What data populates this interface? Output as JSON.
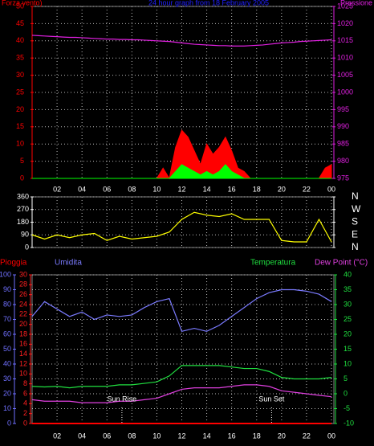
{
  "chart_data": [
    {
      "type": "line",
      "title": "24 hour graph from 18 February 2005",
      "title_color": "#2020ff",
      "ylabel": "Forza vento)",
      "y2label": "Pressione",
      "x": [
        0,
        0.5,
        1,
        1.5,
        2,
        2.5,
        3,
        3.5,
        4,
        4.5,
        5,
        5.5,
        6,
        6.5,
        7,
        7.5,
        8,
        8.5,
        9,
        9.5,
        10,
        10.5,
        11,
        11.5,
        12,
        12.5,
        13,
        13.5,
        14,
        14.5,
        15,
        15.5,
        16,
        16.5,
        17,
        17.5,
        18,
        18.5,
        19,
        19.5,
        20,
        20.5,
        21,
        21.5,
        22,
        22.5,
        23,
        23.5,
        24
      ],
      "xlim": [
        0,
        24
      ],
      "xticks": [
        {
          "value": 2,
          "label": "02"
        },
        {
          "value": 4,
          "label": "04"
        },
        {
          "value": 6,
          "label": "06"
        },
        {
          "value": 8,
          "label": "08"
        },
        10,
        12,
        14,
        16,
        18,
        20,
        22,
        {
          "value": 24,
          "label": "00"
        }
      ],
      "ylim": [
        0,
        50
      ],
      "yticks": [
        0,
        5,
        10,
        15,
        20,
        25,
        30,
        35,
        40,
        45,
        50
      ],
      "ycolor": "#ff0000",
      "y2lim": [
        975,
        1025
      ],
      "y2ticks": [
        975,
        980,
        985,
        990,
        995,
        1000,
        1005,
        1010,
        1015,
        1020,
        1025
      ],
      "y2color": "#e020e0",
      "grid": true,
      "grid_axis": "y",
      "series": [
        {
          "style": "area",
          "color": "#ff0000",
          "axis": "y",
          "values": [
            0,
            0,
            0,
            0,
            0,
            0,
            0,
            0,
            0,
            0,
            0,
            0,
            0,
            0,
            0,
            0,
            0,
            0,
            0,
            0,
            0,
            3,
            0,
            9,
            14,
            12,
            8,
            4,
            10,
            7,
            9,
            12,
            8,
            3,
            2,
            0,
            0,
            0,
            0,
            0,
            0,
            0,
            0,
            0,
            0,
            0,
            0,
            3,
            4
          ]
        },
        {
          "style": "area",
          "color": "#00ff00",
          "axis": "y",
          "values": [
            0,
            0,
            0,
            0,
            0,
            0,
            0,
            0,
            0,
            0,
            0,
            0,
            0,
            0,
            0,
            0,
            0,
            0,
            0,
            0,
            0,
            0,
            0,
            2,
            4,
            3,
            2,
            1,
            2,
            1,
            2,
            4,
            2,
            1,
            0,
            0,
            0,
            0,
            0,
            0,
            0,
            0,
            0,
            0,
            0,
            0,
            0,
            0,
            0
          ]
        },
        {
          "style": "line",
          "color": "#e020e0",
          "axis": "y2",
          "values": [
            1016.6,
            1016.5,
            1016.4,
            1016.3,
            1016.2,
            1016.1,
            1016.0,
            1016.0,
            1015.9,
            1015.8,
            1015.7,
            1015.6,
            1015.5,
            1015.5,
            1015.4,
            1015.4,
            1015.3,
            1015.3,
            1015.2,
            1015.1,
            1015.0,
            1014.9,
            1014.8,
            1014.6,
            1014.4,
            1014.2,
            1014.0,
            1013.9,
            1013.8,
            1013.7,
            1013.6,
            1013.6,
            1013.5,
            1013.5,
            1013.5,
            1013.6,
            1013.7,
            1013.8,
            1014.0,
            1014.2,
            1014.4,
            1014.5,
            1014.6,
            1014.8,
            1014.9,
            1015.0,
            1015.1,
            1015.2,
            1015.3
          ]
        }
      ]
    },
    {
      "type": "line",
      "x": [
        0,
        1,
        2,
        3,
        4,
        5,
        6,
        7,
        8,
        9,
        10,
        11,
        12,
        13,
        14,
        15,
        16,
        17,
        18,
        19,
        20,
        21,
        22,
        23,
        24
      ],
      "xlim": [
        0,
        24
      ],
      "ylim": [
        0,
        360
      ],
      "yticks": [
        0,
        90,
        180,
        270,
        360
      ],
      "ycolor": "#ffffff",
      "y2lim": [
        0,
        360
      ],
      "y2ticks": [
        {
          "value": 0,
          "label": "N"
        },
        {
          "value": 90,
          "label": "E"
        },
        {
          "value": 180,
          "label": "S"
        },
        {
          "value": 270,
          "label": "W"
        },
        {
          "value": 360,
          "label": "N"
        }
      ],
      "y2color": "#ffffff",
      "grid": true,
      "grid_axis": "y",
      "series": [
        {
          "style": "line",
          "color": "#ffff00",
          "axis": "y",
          "values": [
            90,
            60,
            90,
            70,
            90,
            100,
            50,
            80,
            60,
            70,
            80,
            110,
            200,
            250,
            230,
            220,
            240,
            200,
            200,
            200,
            50,
            40,
            40,
            200,
            40
          ]
        }
      ]
    },
    {
      "type": "line",
      "x": [
        0,
        1,
        2,
        3,
        4,
        5,
        6,
        7,
        8,
        9,
        10,
        11,
        12,
        13,
        14,
        15,
        16,
        17,
        18,
        19,
        20,
        21,
        22,
        23,
        24
      ],
      "xlim": [
        0,
        24
      ],
      "xticks": [
        {
          "value": 2,
          "label": "02"
        },
        {
          "value": 4,
          "label": "04"
        },
        {
          "value": 6,
          "label": "06"
        },
        {
          "value": 8,
          "label": "08"
        },
        10,
        12,
        14,
        16,
        18,
        20,
        22,
        {
          "value": 24,
          "label": "00"
        }
      ],
      "ylim": [
        0,
        30
      ],
      "yticks": [
        0,
        2,
        4,
        6,
        8,
        10,
        12,
        14,
        16,
        18,
        20,
        22,
        24,
        26,
        28,
        30
      ],
      "ycolor": "#ff2020",
      "y2lim": [
        -10,
        40
      ],
      "y2ticks": [
        -10,
        -5,
        0,
        5,
        10,
        15,
        20,
        25,
        30,
        35,
        40
      ],
      "y2color": "#20e040",
      "y3lim": [
        0,
        100
      ],
      "y3ticks": [
        0,
        10,
        20,
        30,
        40,
        50,
        60,
        70,
        80,
        90,
        100
      ],
      "y3color": "#7070ff",
      "grid": true,
      "grid_axis": "y2",
      "series": [
        {
          "name": "Pioggia",
          "style": "line",
          "color": "#ff0000",
          "axis": "y",
          "values": [
            0,
            0,
            0,
            0,
            0,
            0,
            0,
            0,
            0,
            0,
            0,
            0,
            0,
            0,
            0,
            0,
            0,
            0,
            0,
            0,
            0,
            0,
            0,
            0,
            0
          ]
        },
        {
          "name": "Umidita",
          "style": "line",
          "color": "#7b7bff",
          "axis": "y3",
          "values": [
            72,
            82,
            77,
            72,
            75,
            70,
            73,
            72,
            73,
            78,
            82,
            84,
            62,
            64,
            62,
            66,
            72,
            78,
            84,
            88,
            90,
            90,
            89,
            87,
            82
          ]
        },
        {
          "name": "Temperatura",
          "style": "line",
          "color": "#20e040",
          "axis": "y2",
          "values": [
            2.5,
            2.3,
            2.5,
            2,
            2.5,
            2.5,
            2.5,
            3,
            3,
            3.5,
            4,
            6,
            9.5,
            9.5,
            9.5,
            9.5,
            9,
            8.5,
            8.5,
            7.5,
            5.5,
            5,
            5,
            5,
            5.5
          ]
        },
        {
          "name": "Dew Point (°C)",
          "style": "line",
          "color": "#e040e0",
          "axis": "y2",
          "values": [
            -2,
            -2.5,
            -2.5,
            -2.5,
            -3,
            -3,
            -3,
            -2.5,
            -2.5,
            -2,
            -1.5,
            0,
            1.5,
            2,
            2,
            2,
            2.5,
            3,
            3,
            2.5,
            1,
            0.5,
            0,
            -0.5,
            -1
          ]
        }
      ],
      "annotations": [
        {
          "text": "Sun Rise",
          "x": 7.2
        },
        {
          "text": "Sun Set",
          "x": 19.2
        }
      ]
    }
  ]
}
